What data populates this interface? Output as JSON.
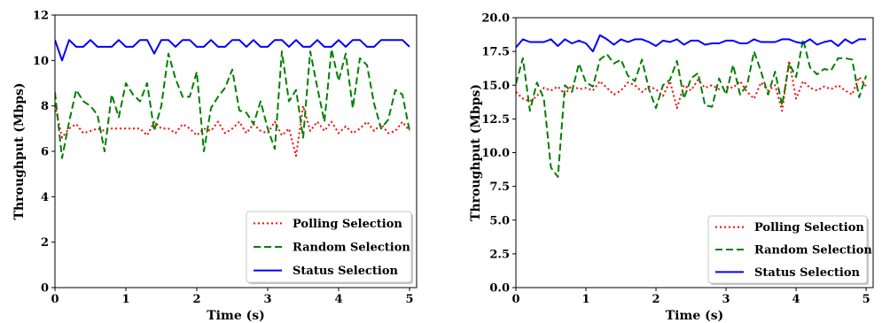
{
  "chart_data": [
    {
      "type": "line",
      "title": "",
      "xlabel": "Time (s)",
      "ylabel": "Throughput (Mbps)",
      "xlim": [
        0,
        5.1
      ],
      "ylim": [
        0,
        12
      ],
      "xticks": [
        0,
        1,
        2,
        3,
        4,
        5
      ],
      "yticks": [
        0,
        2,
        4,
        6,
        8,
        10,
        12
      ],
      "ytick_labels": [
        "0",
        "2",
        "4",
        "6",
        "8",
        "10",
        "12"
      ],
      "grid": false,
      "legend_position": "lower-right",
      "x": [
        0,
        0.1,
        0.2,
        0.3,
        0.4,
        0.5,
        0.6,
        0.7,
        0.8,
        0.9,
        1.0,
        1.1,
        1.2,
        1.3,
        1.4,
        1.5,
        1.6,
        1.7,
        1.8,
        1.9,
        2.0,
        2.1,
        2.2,
        2.3,
        2.4,
        2.5,
        2.6,
        2.7,
        2.8,
        2.9,
        3.0,
        3.1,
        3.2,
        3.3,
        3.4,
        3.5,
        3.6,
        3.7,
        3.8,
        3.9,
        4.0,
        4.1,
        4.2,
        4.3,
        4.4,
        4.5,
        4.6,
        4.7,
        4.8,
        4.9,
        5.0
      ],
      "series": [
        {
          "name": "Polling Selection",
          "color": "#ff0000",
          "style": "dotted",
          "values": [
            8.0,
            6.6,
            7.0,
            7.2,
            6.8,
            6.9,
            7.0,
            6.9,
            7.0,
            7.0,
            7.0,
            7.0,
            7.0,
            6.7,
            7.3,
            7.0,
            7.0,
            6.8,
            7.2,
            7.0,
            6.7,
            7.0,
            6.9,
            7.3,
            6.8,
            7.0,
            7.3,
            6.8,
            7.2,
            6.9,
            6.8,
            7.3,
            6.7,
            7.0,
            5.8,
            8.0,
            6.9,
            7.3,
            6.9,
            7.3,
            6.8,
            7.1,
            6.8,
            7.0,
            7.3,
            6.9,
            7.2,
            6.8,
            6.9,
            7.3,
            6.9
          ]
        },
        {
          "name": "Random Selection",
          "color": "#008000",
          "style": "dashed",
          "values": [
            8.6,
            5.7,
            7.3,
            8.7,
            8.2,
            8.0,
            7.6,
            6.0,
            8.5,
            7.5,
            9.0,
            8.5,
            8.2,
            9.0,
            6.9,
            8.0,
            10.3,
            9.2,
            8.4,
            8.4,
            9.5,
            6.0,
            7.9,
            8.4,
            8.8,
            9.6,
            7.8,
            7.7,
            7.2,
            8.2,
            7.0,
            6.1,
            10.4,
            8.2,
            8.7,
            6.6,
            10.4,
            8.8,
            7.3,
            10.5,
            9.1,
            10.3,
            7.9,
            10.1,
            9.8,
            8.1,
            7.0,
            7.4,
            8.7,
            8.5,
            6.9
          ]
        },
        {
          "name": "Status Selection",
          "color": "#0000ff",
          "style": "solid",
          "values": [
            10.9,
            10.0,
            10.9,
            10.6,
            10.6,
            10.9,
            10.6,
            10.6,
            10.6,
            10.9,
            10.6,
            10.6,
            10.9,
            10.9,
            10.3,
            10.9,
            10.9,
            10.6,
            10.9,
            10.9,
            10.6,
            10.6,
            10.9,
            10.6,
            10.6,
            10.9,
            10.9,
            10.6,
            10.9,
            10.6,
            10.6,
            10.9,
            10.9,
            10.6,
            10.9,
            10.6,
            10.6,
            10.9,
            10.6,
            10.6,
            10.9,
            10.6,
            10.9,
            10.9,
            10.6,
            10.6,
            10.9,
            10.9,
            10.9,
            10.9,
            10.6
          ]
        }
      ]
    },
    {
      "type": "line",
      "title": "",
      "xlabel": "Time (s)",
      "ylabel": "Throughput (Mbps)",
      "xlim": [
        0,
        5.1
      ],
      "ylim": [
        0,
        20
      ],
      "xticks": [
        0,
        1,
        2,
        3,
        4,
        5
      ],
      "yticks": [
        0,
        2.5,
        5,
        7.5,
        10,
        12.5,
        15,
        17.5,
        20
      ],
      "ytick_labels": [
        "0.0",
        "2.5",
        "5.0",
        "7.5",
        "10.0",
        "12.5",
        "15.0",
        "17.5",
        "20.0"
      ],
      "grid": false,
      "legend_position": "lower-right",
      "x": [
        0,
        0.1,
        0.2,
        0.3,
        0.4,
        0.5,
        0.6,
        0.7,
        0.8,
        0.9,
        1.0,
        1.1,
        1.2,
        1.3,
        1.4,
        1.5,
        1.6,
        1.7,
        1.8,
        1.9,
        2.0,
        2.1,
        2.2,
        2.3,
        2.4,
        2.5,
        2.6,
        2.7,
        2.8,
        2.9,
        3.0,
        3.1,
        3.2,
        3.3,
        3.4,
        3.5,
        3.6,
        3.7,
        3.8,
        3.9,
        4.0,
        4.1,
        4.2,
        4.3,
        4.4,
        4.5,
        4.6,
        4.7,
        4.8,
        4.9,
        5.0
      ],
      "series": [
        {
          "name": "Polling Selection",
          "color": "#ff0000",
          "style": "dotted",
          "values": [
            14.5,
            14.0,
            13.8,
            14.2,
            14.8,
            14.6,
            14.9,
            14.3,
            15.0,
            14.7,
            14.8,
            14.6,
            15.3,
            14.8,
            14.3,
            14.6,
            15.2,
            15.0,
            14.5,
            14.9,
            14.7,
            14.2,
            15.3,
            13.3,
            15.0,
            14.6,
            15.4,
            14.8,
            15.0,
            14.7,
            14.9,
            14.8,
            15.3,
            14.5,
            14.0,
            15.2,
            14.6,
            15.0,
            13.1,
            16.8,
            14.0,
            15.3,
            14.8,
            14.6,
            14.9,
            14.7,
            15.0,
            14.6,
            14.3,
            15.6,
            14.9
          ]
        },
        {
          "name": "Random Selection",
          "color": "#008000",
          "style": "dashed",
          "values": [
            15.1,
            17.0,
            13.1,
            15.2,
            14.0,
            8.9,
            8.2,
            15.0,
            14.5,
            16.6,
            15.2,
            14.9,
            16.9,
            17.3,
            16.6,
            16.9,
            15.7,
            15.3,
            16.9,
            14.7,
            13.3,
            15.0,
            15.4,
            16.8,
            14.0,
            15.5,
            15.9,
            13.5,
            13.4,
            15.5,
            14.3,
            16.5,
            14.3,
            15.0,
            17.5,
            16.0,
            14.3,
            16.0,
            13.5,
            16.6,
            15.6,
            18.4,
            16.3,
            15.8,
            16.2,
            16.1,
            17.0,
            17.0,
            16.9,
            14.1,
            15.7
          ]
        },
        {
          "name": "Status Selection",
          "color": "#0000ff",
          "style": "solid",
          "values": [
            17.8,
            18.4,
            18.2,
            18.2,
            18.2,
            18.4,
            17.9,
            18.4,
            18.1,
            18.3,
            18.1,
            17.5,
            18.7,
            18.4,
            18.0,
            18.4,
            18.2,
            18.4,
            18.4,
            18.2,
            17.9,
            18.3,
            18.2,
            18.4,
            18.0,
            18.3,
            18.3,
            18.0,
            18.1,
            18.1,
            18.3,
            18.3,
            18.1,
            18.1,
            18.4,
            18.2,
            18.2,
            18.2,
            18.4,
            18.4,
            18.2,
            18.1,
            18.4,
            18.0,
            18.2,
            18.3,
            17.9,
            18.4,
            18.1,
            18.4,
            18.4
          ]
        }
      ]
    }
  ]
}
